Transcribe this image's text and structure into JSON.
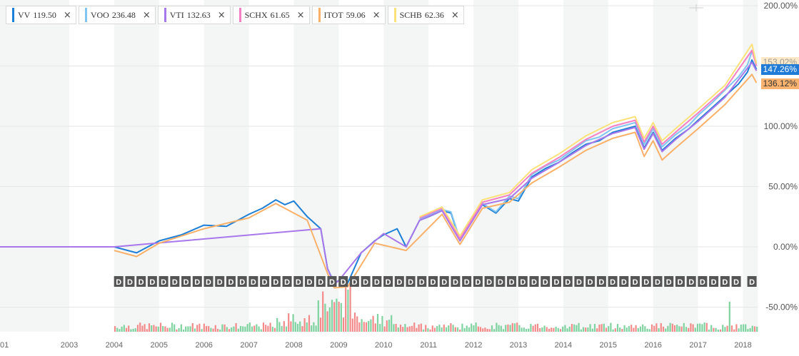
{
  "legend": [
    {
      "ticker": "VV",
      "value": "119.50",
      "color": "#1e7fd6"
    },
    {
      "ticker": "VOO",
      "value": "236.48",
      "color": "#80c4f2"
    },
    {
      "ticker": "VTI",
      "value": "132.63",
      "color": "#a877ea"
    },
    {
      "ticker": "SCHX",
      "value": "61.65",
      "color": "#f57fc4"
    },
    {
      "ticker": "ITOT",
      "value": "59.06",
      "color": "#f9b16a"
    },
    {
      "ticker": "SCHB",
      "value": "62.36",
      "color": "#fbe27a"
    }
  ],
  "close_icon": "×",
  "price_tags": {
    "voo": "153.02%",
    "vv": "147.26%",
    "itot": "136.12%"
  },
  "dividend_marker": "D",
  "chart_data": {
    "type": "line",
    "title": "",
    "xlabel": "",
    "ylabel": "",
    "ylim": [
      -58,
      200
    ],
    "y_ticks": [
      "200.00%",
      "150.00%",
      "100.00%",
      "50.00%",
      "0.00%",
      "-50.00%"
    ],
    "y_tick_values": [
      200,
      150,
      100,
      50,
      0,
      -50
    ],
    "x_ticks": [
      "01",
      "2003",
      "2004",
      "2005",
      "2006",
      "2007",
      "2008",
      "2009",
      "2010",
      "2011",
      "2012",
      "2013",
      "2014",
      "2015",
      "2016",
      "2017",
      "2018"
    ],
    "x_tick_values": [
      2001.0,
      2003.0,
      2004.0,
      2005.0,
      2006.0,
      2007.0,
      2008.0,
      2009.0,
      2010.0,
      2011.0,
      2012.0,
      2013.0,
      2014.0,
      2015.0,
      2016.0,
      2017.0,
      2018.0
    ],
    "xlim": [
      2001.0,
      2018.3
    ],
    "grid": true,
    "series": [
      {
        "name": "VV",
        "color": "#1e7fd6",
        "x": [
          2001.0,
          2004.0,
          2004.2,
          2004.5,
          2005.0,
          2005.5,
          2006.0,
          2006.5,
          2007.0,
          2007.3,
          2007.6,
          2007.8,
          2008.0,
          2008.3,
          2008.6,
          2008.75,
          2008.9,
          2009.0,
          2009.2,
          2009.5,
          2009.8,
          2010.0,
          2010.3,
          2010.5,
          2010.8,
          2011.0,
          2011.3,
          2011.5,
          2011.7,
          2011.9,
          2012.2,
          2012.5,
          2012.8,
          2013.0,
          2013.3,
          2013.6,
          2013.9,
          2014.2,
          2014.5,
          2014.8,
          2015.1,
          2015.4,
          2015.6,
          2015.8,
          2016.0,
          2016.2,
          2016.5,
          2016.8,
          2017.0,
          2017.3,
          2017.6,
          2017.9,
          2018.1,
          2018.2,
          2018.3
        ],
        "y": [
          0,
          0,
          -2,
          -5,
          5,
          10,
          18,
          17,
          27,
          32,
          39,
          35,
          38,
          25,
          15,
          -18,
          -30,
          -28,
          -30,
          -5,
          5,
          10,
          15,
          0,
          22,
          25,
          30,
          28,
          5,
          20,
          35,
          28,
          40,
          38,
          58,
          65,
          70,
          78,
          85,
          88,
          95,
          98,
          100,
          82,
          95,
          80,
          90,
          98,
          105,
          115,
          125,
          135,
          145,
          155,
          147.26
        ]
      },
      {
        "name": "VOO",
        "color": "#80c4f2",
        "x": [
          2010.8,
          2011.0,
          2011.3,
          2011.5,
          2011.7,
          2011.9,
          2012.2,
          2012.5,
          2012.8,
          2013.0,
          2013.3,
          2013.6,
          2013.9,
          2014.2,
          2014.5,
          2014.8,
          2015.1,
          2015.4,
          2015.6,
          2015.8,
          2016.0,
          2016.2,
          2016.5,
          2016.8,
          2017.0,
          2017.3,
          2017.6,
          2017.9,
          2018.1,
          2018.2,
          2018.3
        ],
        "y": [
          23,
          26,
          31,
          29,
          6,
          21,
          36,
          29,
          42,
          40,
          60,
          67,
          72,
          80,
          88,
          91,
          98,
          101,
          103,
          85,
          98,
          83,
          93,
          101,
          109,
          119,
          130,
          141,
          151,
          162,
          153.02
        ]
      },
      {
        "name": "VTI",
        "color": "#a877ea",
        "x": [
          2001.0,
          2004.0,
          2008.6,
          2008.75,
          2008.9,
          2009.0,
          2009.5,
          2010.0,
          2010.5,
          2010.8,
          2011.3,
          2011.7,
          2012.2,
          2012.8,
          2013.3,
          2013.9,
          2014.5,
          2015.1,
          2015.6,
          2015.8,
          2016.0,
          2016.2,
          2016.5,
          2017.0,
          2017.6,
          2018.2,
          2018.3
        ],
        "y": [
          0,
          0,
          15,
          -18,
          -31,
          -28,
          -5,
          11,
          0,
          22,
          30,
          5,
          35,
          40,
          57,
          70,
          84,
          94,
          99,
          81,
          94,
          79,
          89,
          104,
          124,
          153,
          146
        ]
      },
      {
        "name": "SCHX",
        "color": "#f57fc4",
        "x": [
          2010.8,
          2011.3,
          2011.7,
          2012.2,
          2012.8,
          2013.3,
          2013.9,
          2014.5,
          2015.1,
          2015.6,
          2015.8,
          2016.0,
          2016.2,
          2016.5,
          2017.0,
          2017.6,
          2018.2,
          2018.3
        ],
        "y": [
          24,
          32,
          7,
          37,
          43,
          61,
          74,
          89,
          100,
          105,
          87,
          100,
          85,
          95,
          111,
          131,
          163,
          150
        ]
      },
      {
        "name": "ITOT",
        "color": "#f9b16a",
        "x": [
          2004.0,
          2004.5,
          2005.0,
          2006.0,
          2007.0,
          2007.6,
          2008.3,
          2008.75,
          2008.9,
          2009.2,
          2009.8,
          2010.5,
          2011.3,
          2011.7,
          2012.2,
          2012.8,
          2013.3,
          2013.9,
          2014.5,
          2015.1,
          2015.6,
          2015.8,
          2016.0,
          2016.2,
          2016.5,
          2017.0,
          2017.6,
          2018.2,
          2018.3
        ],
        "y": [
          -3,
          -8,
          3,
          15,
          24,
          36,
          22,
          -22,
          -34,
          -33,
          3,
          -3,
          27,
          2,
          32,
          37,
          53,
          66,
          80,
          90,
          95,
          75,
          88,
          72,
          82,
          98,
          118,
          143,
          136.12
        ]
      },
      {
        "name": "SCHB",
        "color": "#fbe27a",
        "x": [
          2010.8,
          2011.3,
          2011.7,
          2012.2,
          2012.8,
          2013.3,
          2013.9,
          2014.5,
          2015.1,
          2015.6,
          2015.8,
          2016.0,
          2016.2,
          2016.5,
          2017.0,
          2017.6,
          2018.2,
          2018.3
        ],
        "y": [
          25,
          33,
          9,
          39,
          45,
          64,
          77,
          92,
          103,
          108,
          90,
          103,
          88,
          98,
          114,
          134,
          168,
          152
        ]
      }
    ],
    "dividend_x": [
      2004.1,
      2004.35,
      2004.6,
      2004.85,
      2005.1,
      2005.35,
      2005.6,
      2005.85,
      2006.1,
      2006.35,
      2006.6,
      2006.85,
      2007.1,
      2007.35,
      2007.6,
      2007.85,
      2008.1,
      2008.35,
      2008.6,
      2008.85,
      2009.1,
      2009.35,
      2009.6,
      2009.85,
      2010.1,
      2010.35,
      2010.6,
      2010.85,
      2011.1,
      2011.35,
      2011.6,
      2011.85,
      2012.1,
      2012.35,
      2012.6,
      2012.85,
      2013.1,
      2013.35,
      2013.6,
      2013.85,
      2014.1,
      2014.35,
      2014.6,
      2014.85,
      2015.1,
      2015.35,
      2015.6,
      2015.85,
      2016.1,
      2016.35,
      2016.6,
      2016.85,
      2017.1,
      2017.35,
      2017.6,
      2017.85,
      2018.2
    ]
  }
}
